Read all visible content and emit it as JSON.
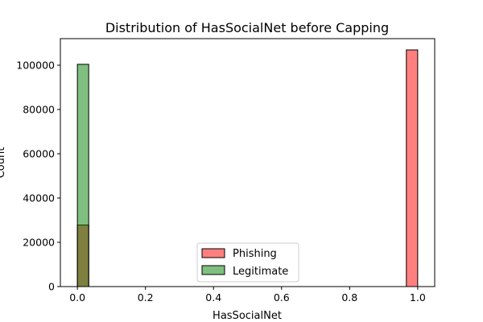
{
  "chart_data": {
    "type": "bar",
    "title": "Distribution of HasSocialNet before Capping",
    "xlabel": "HasSocialNet",
    "ylabel": "Count",
    "xlim": [
      -0.05,
      1.05
    ],
    "ylim": [
      0,
      112000
    ],
    "x_ticks": [
      0.0,
      0.2,
      0.4,
      0.6,
      0.8,
      1.0
    ],
    "x_tick_labels": [
      "0.0",
      "0.2",
      "0.4",
      "0.6",
      "0.8",
      "1.0"
    ],
    "y_ticks": [
      0,
      20000,
      40000,
      60000,
      80000,
      100000
    ],
    "y_tick_labels": [
      "0",
      "20000",
      "40000",
      "60000",
      "80000",
      "100000"
    ],
    "bin_width": 0.0333,
    "legend_placement": "lower-center",
    "grid": false,
    "series": [
      {
        "name": "Phishing",
        "color": "#ff0000",
        "bins": [
          {
            "x0": 0.0,
            "x1": 0.0333,
            "count": 27800
          },
          {
            "x0": 0.9667,
            "x1": 1.0,
            "count": 106900
          }
        ]
      },
      {
        "name": "Legitimate",
        "color": "#008000",
        "bins": [
          {
            "x0": 0.0,
            "x1": 0.0333,
            "count": 100400
          }
        ]
      }
    ]
  }
}
